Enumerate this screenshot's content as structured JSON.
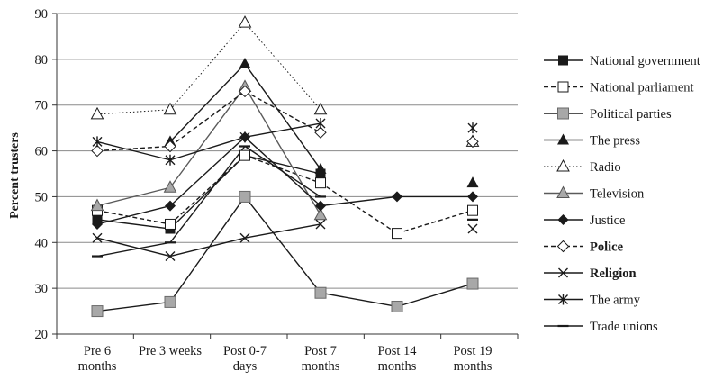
{
  "chart_data": {
    "type": "line",
    "ylabel": "Percent trusters",
    "ylim": [
      20,
      90
    ],
    "yticks": [
      20,
      30,
      40,
      50,
      60,
      70,
      80,
      90
    ],
    "grid": "horizontal",
    "legend_position": "right",
    "categories": [
      [
        "Pre 6",
        "months"
      ],
      [
        "Pre 3 weeks"
      ],
      [
        "Post 0-7",
        "days"
      ],
      [
        "Post 7",
        "months"
      ],
      [
        "Post 14",
        "months"
      ],
      [
        "Post 19",
        "months"
      ]
    ],
    "series": [
      {
        "name": "National government",
        "marker": "square-filled",
        "line": "solid",
        "color": "#1a1a1a",
        "values": [
          45,
          43,
          59,
          55,
          null,
          47
        ]
      },
      {
        "name": "National parliament",
        "marker": "square-open",
        "line": "dashed",
        "color": "#1a1a1a",
        "values": [
          47,
          44,
          59,
          53,
          42,
          47
        ]
      },
      {
        "name": "Political parties",
        "marker": "square-gray",
        "line": "solid",
        "color": "#1a1a1a",
        "values": [
          25,
          27,
          50,
          29,
          26,
          31
        ]
      },
      {
        "name": "The press",
        "marker": "triangle-filled",
        "line": "solid",
        "color": "#1a1a1a",
        "values": [
          null,
          62,
          79,
          56,
          null,
          53
        ]
      },
      {
        "name": "Radio",
        "marker": "triangle-open",
        "line": "dotted",
        "color": "#1a1a1a",
        "values": [
          68,
          69,
          88,
          69,
          null,
          62
        ]
      },
      {
        "name": "Television",
        "marker": "triangle-gray",
        "line": "solid",
        "color": "#5a5a5a",
        "values": [
          48,
          52,
          74,
          46,
          null,
          null
        ]
      },
      {
        "name": "Justice",
        "marker": "diamond-filled",
        "line": "solid",
        "color": "#1a1a1a",
        "values": [
          44,
          48,
          63,
          48,
          50,
          50
        ]
      },
      {
        "name": "Police",
        "marker": "diamond-open",
        "line": "dashed",
        "color": "#1a1a1a",
        "values": [
          60,
          61,
          73,
          64,
          null,
          62
        ]
      },
      {
        "name": "Religion",
        "marker": "x",
        "line": "solid",
        "color": "#1a1a1a",
        "values": [
          41,
          37,
          41,
          44,
          null,
          43
        ]
      },
      {
        "name": "The army",
        "marker": "star",
        "line": "solid",
        "color": "#1a1a1a",
        "values": [
          62,
          58,
          63,
          66,
          null,
          65
        ]
      },
      {
        "name": "Trade unions",
        "marker": "dash",
        "line": "solid",
        "color": "#1a1a1a",
        "values": [
          37,
          40,
          61,
          50,
          null,
          45
        ]
      }
    ]
  }
}
